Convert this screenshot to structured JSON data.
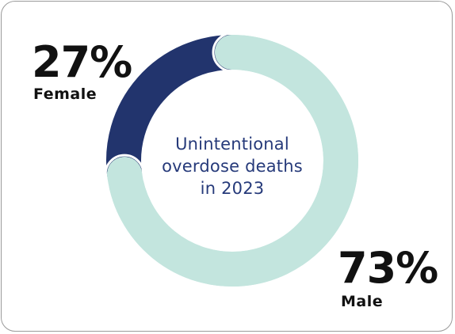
{
  "chart_data": {
    "type": "pie",
    "title": "",
    "center_label": [
      "Unintentional",
      "overdose deaths",
      "in 2023"
    ],
    "slices": [
      {
        "label": "Female",
        "value": 27,
        "value_label": "27%",
        "color": "#22346d"
      },
      {
        "label": "Male",
        "value": 73,
        "value_label": "73%",
        "color": "#c3e5de"
      }
    ],
    "donut": true
  }
}
